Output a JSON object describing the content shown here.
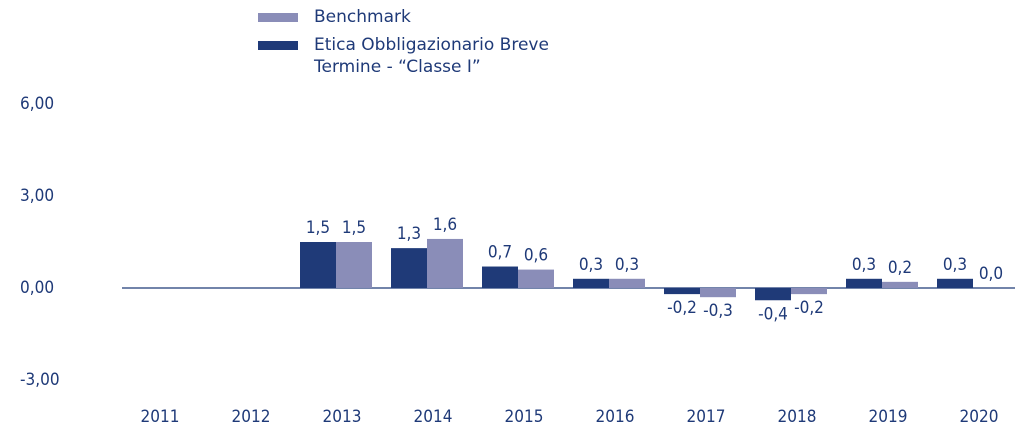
{
  "chart_data": {
    "type": "bar",
    "categories": [
      "2011",
      "2012",
      "2013",
      "2014",
      "2015",
      "2016",
      "2017",
      "2018",
      "2019",
      "2020"
    ],
    "series": [
      {
        "name": "Etica Obbligazionario Breve Termine - “Classe I”",
        "color": "#1f3a78",
        "values": [
          null,
          null,
          1.5,
          1.3,
          0.7,
          0.3,
          -0.2,
          -0.4,
          0.3,
          0.3
        ],
        "value_labels": [
          null,
          null,
          "1,5",
          "1,3",
          "0,7",
          "0,3",
          "-0,2",
          "-0,4",
          "0,3",
          "0,3"
        ]
      },
      {
        "name": "Benchmark",
        "color": "#8a8db8",
        "values": [
          null,
          null,
          1.5,
          1.6,
          0.6,
          0.3,
          -0.3,
          -0.2,
          0.2,
          0.0
        ],
        "value_labels": [
          null,
          null,
          "1,5",
          "1,6",
          "0,6",
          "0,3",
          "-0,3",
          "-0,2",
          "0,2",
          "0,0"
        ]
      }
    ],
    "ylim": [
      -3.5,
      6.5
    ],
    "yticks": [
      {
        "value": -3,
        "label": "-3,00"
      },
      {
        "value": 0,
        "label": "0,00"
      },
      {
        "value": 3,
        "label": "3,00"
      },
      {
        "value": 6,
        "label": "6,00"
      }
    ],
    "legend": "top"
  }
}
